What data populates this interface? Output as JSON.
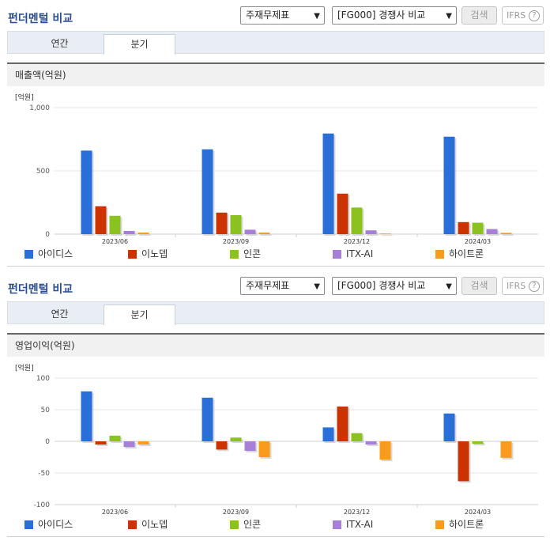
{
  "panels": [
    {
      "title": "펀더멘털 비교",
      "select1": "주재무제표",
      "select2": "[FG000] 경쟁사 비교",
      "search_label": "검색",
      "ifrs_label": "IFRS",
      "help_label": "?",
      "tabs": [
        "연간",
        "분기"
      ],
      "section_label": "매출액(억원)",
      "legend": [
        "아이디스",
        "이노뎁",
        "인콘",
        "ITX-AI",
        "하이트론"
      ]
    },
    {
      "title": "펀더멘털 비교",
      "select1": "주재무제표",
      "select2": "[FG000] 경쟁사 비교",
      "search_label": "검색",
      "ifrs_label": "IFRS",
      "help_label": "?",
      "tabs": [
        "연간",
        "분기"
      ],
      "section_label": "영업이익(억원)",
      "legend": [
        "아이디스",
        "이노뎁",
        "인콘",
        "ITX-AI",
        "하이트론"
      ]
    }
  ],
  "colors": [
    "#2a6fd8",
    "#cc3300",
    "#8cc21f",
    "#a87fd8",
    "#f99b1c"
  ],
  "chart_data": [
    {
      "type": "bar",
      "unit_label": "[억원]",
      "categories": [
        "2023/06",
        "2023/09",
        "2023/12",
        "2024/03"
      ],
      "ylim": [
        0,
        1000
      ],
      "yticks": [
        0,
        500,
        1000
      ],
      "ytick_labels": [
        "0",
        "500",
        "1,000"
      ],
      "series": [
        {
          "name": "아이디스",
          "values": [
            660,
            670,
            795,
            770
          ]
        },
        {
          "name": "이노뎁",
          "values": [
            220,
            170,
            320,
            95
          ]
        },
        {
          "name": "인콘",
          "values": [
            145,
            150,
            210,
            90
          ]
        },
        {
          "name": "ITX-AI",
          "values": [
            25,
            35,
            30,
            40
          ]
        },
        {
          "name": "하이트론",
          "values": [
            12,
            12,
            5,
            10
          ]
        }
      ]
    },
    {
      "type": "bar",
      "unit_label": "[억원]",
      "categories": [
        "2023/06",
        "2023/09",
        "2023/12",
        "2024/03"
      ],
      "ylim": [
        -100,
        100
      ],
      "yticks": [
        -100,
        -50,
        0,
        50,
        100
      ],
      "ytick_labels": [
        "-100",
        "-50",
        "0",
        "50",
        "100"
      ],
      "series": [
        {
          "name": "아이디스",
          "values": [
            79,
            69,
            22,
            44
          ]
        },
        {
          "name": "이노뎁",
          "values": [
            -5,
            -13,
            55,
            -63
          ]
        },
        {
          "name": "인콘",
          "values": [
            9,
            6,
            13,
            -4
          ]
        },
        {
          "name": "ITX-AI",
          "values": [
            -9,
            -15,
            -5,
            0
          ]
        },
        {
          "name": "하이트론",
          "values": [
            -5,
            -25,
            -29,
            -26
          ]
        }
      ]
    }
  ]
}
